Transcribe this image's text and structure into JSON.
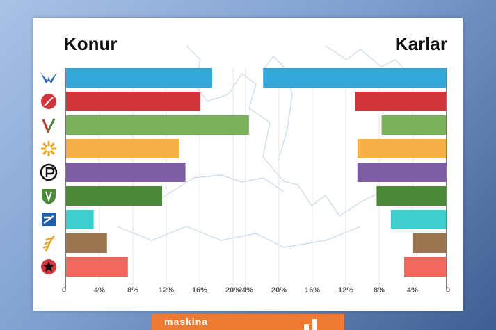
{
  "chart_data": {
    "type": "bar",
    "orientation": "horizontal-butterfly",
    "left_title": "Konur",
    "right_title": "Karlar",
    "categories": [
      "Sjálfstæðisflokkur",
      "Samfylkingin",
      "Vinstri græn",
      "Viðreisn",
      "Píratar",
      "Framsóknarflokkur",
      "Flokkur fólksins",
      "Miðflokkurinn",
      "Sósíalistaflokkurinn"
    ],
    "colors": [
      "#35a8d8",
      "#d2343b",
      "#7aaf5c",
      "#f5b047",
      "#7d5ea4",
      "#4c8a3a",
      "#3ecfcd",
      "#9b7550",
      "#f0685e"
    ],
    "icons": [
      "falcon-icon",
      "rose-icon",
      "vg-icon",
      "sun-icon",
      "pirate-icon",
      "shield-icon",
      "bridge-icon",
      "wheat-icon",
      "star-icon"
    ],
    "series": [
      {
        "name": "Konur",
        "values": [
          17.5,
          16.1,
          21.9,
          13.5,
          14.3,
          11.5,
          3.3,
          4.9,
          7.4
        ]
      },
      {
        "name": "Karlar",
        "values": [
          21.9,
          10.9,
          7.7,
          10.6,
          10.6,
          8.3,
          6.6,
          4.0,
          5.0
        ]
      }
    ],
    "left_axis_ticks": [
      "0",
      "4%",
      "8%",
      "12%",
      "16%",
      "20%"
    ],
    "right_axis_ticks": [
      "24%",
      "20%",
      "16%",
      "12%",
      "8%",
      "4%",
      "0"
    ],
    "gridlines": true,
    "background": "faint map outline"
  },
  "footer": {
    "brand": "maskina"
  }
}
